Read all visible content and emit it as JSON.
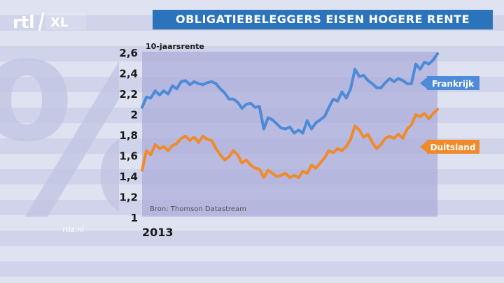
{
  "header": {
    "logo_text": "rtl XL",
    "title": "OBLIGATIEBELEGGERS EISEN HOGERE RENTE"
  },
  "footer": {
    "url": "rtlz.nl",
    "year": "2013"
  },
  "chart_data": {
    "type": "line",
    "title": "OBLIGATIEBELEGGERS EISEN HOGERE RENTE",
    "ylabel": "10-jaarsrente",
    "xlabel": "",
    "ylim": [
      1,
      2.6
    ],
    "yticks": [
      1,
      1.2,
      1.4,
      1.6,
      1.8,
      2,
      2.2,
      2.4,
      2.6
    ],
    "ytick_labels": [
      "1",
      "1,2",
      "1,4",
      "1,6",
      "1,8",
      "2",
      "2,2",
      "2,4",
      "2,6"
    ],
    "x_label_start": "2013",
    "source": "Bron: Thomson Datastream",
    "grid": false,
    "legend_placement": "right",
    "series": [
      {
        "name": "Frankrijk",
        "color": "#4d8ad8",
        "values": [
          2.06,
          2.16,
          2.15,
          2.22,
          2.18,
          2.22,
          2.19,
          2.27,
          2.24,
          2.31,
          2.32,
          2.28,
          2.31,
          2.29,
          2.28,
          2.3,
          2.31,
          2.29,
          2.24,
          2.2,
          2.14,
          2.14,
          2.11,
          2.05,
          2.09,
          2.1,
          2.06,
          2.07,
          1.85,
          1.96,
          1.94,
          1.9,
          1.86,
          1.85,
          1.87,
          1.81,
          1.84,
          1.81,
          1.93,
          1.85,
          1.91,
          1.94,
          1.97,
          2.06,
          2.14,
          2.12,
          2.21,
          2.15,
          2.24,
          2.43,
          2.36,
          2.37,
          2.32,
          2.29,
          2.25,
          2.25,
          2.3,
          2.34,
          2.31,
          2.34,
          2.32,
          2.29,
          2.29,
          2.48,
          2.43,
          2.5,
          2.48,
          2.52,
          2.58
        ]
      },
      {
        "name": "Duitsland",
        "color": "#f08a2a",
        "values": [
          1.45,
          1.64,
          1.6,
          1.7,
          1.66,
          1.68,
          1.64,
          1.69,
          1.71,
          1.76,
          1.78,
          1.74,
          1.77,
          1.72,
          1.78,
          1.75,
          1.74,
          1.66,
          1.6,
          1.55,
          1.58,
          1.64,
          1.6,
          1.52,
          1.55,
          1.5,
          1.47,
          1.46,
          1.38,
          1.45,
          1.42,
          1.39,
          1.4,
          1.42,
          1.38,
          1.4,
          1.38,
          1.44,
          1.42,
          1.5,
          1.47,
          1.52,
          1.57,
          1.64,
          1.62,
          1.66,
          1.64,
          1.68,
          1.75,
          1.88,
          1.84,
          1.77,
          1.8,
          1.72,
          1.66,
          1.7,
          1.76,
          1.78,
          1.76,
          1.8,
          1.76,
          1.85,
          1.89,
          1.99,
          1.97,
          2.0,
          1.95,
          2.0,
          2.04
        ]
      }
    ]
  }
}
